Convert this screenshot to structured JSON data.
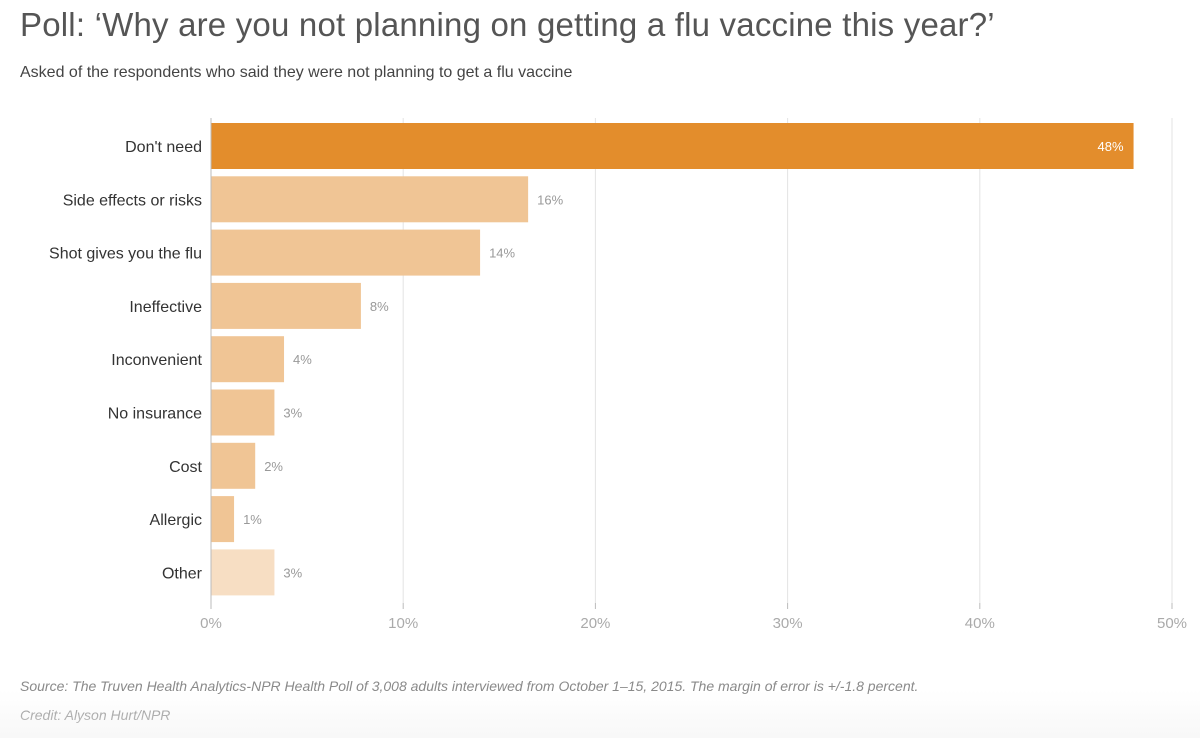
{
  "header": {
    "title": "Poll: ‘Why are you not planning on getting a flu vaccine this year?’",
    "subtitle": "Asked of the respondents who said they were not planning to get a flu vaccine"
  },
  "chart_data": {
    "type": "bar",
    "orientation": "horizontal",
    "title": "Poll: ‘Why are you not planning on getting a flu vaccine this year?’",
    "subtitle": "Asked of the respondents who said they were not planning to get a flu vaccine",
    "categories": [
      "Don't need",
      "Side effects or risks",
      "Shot gives you the flu",
      "Ineffective",
      "Inconvenient",
      "No insurance",
      "Cost",
      "Allergic",
      "Other"
    ],
    "values": [
      48,
      16.5,
      14,
      7.8,
      3.8,
      3.3,
      2.3,
      1.2,
      3.3
    ],
    "value_labels": [
      "48%",
      "16%",
      "14%",
      "8%",
      "4%",
      "3%",
      "2%",
      "1%",
      "3%"
    ],
    "xlim": [
      0,
      50
    ],
    "x_ticks": [
      0,
      10,
      20,
      30,
      40,
      50
    ],
    "x_tick_labels": [
      "0%",
      "10%",
      "20%",
      "30%",
      "40%",
      "50%"
    ],
    "grid": true,
    "xlabel": "",
    "ylabel": "",
    "colors": {
      "highlight": "#E38D2C",
      "default": "#F0C595",
      "other": "#F7DEC3",
      "grid": "#E3E3E3",
      "axis": "#BBBBBB",
      "category_text": "#333333",
      "value_text": "#999999",
      "highlight_value_text": "#FFFFFF",
      "tick_text": "#AAAAAA"
    }
  },
  "footer": {
    "source": "Source: The Truven Health Analytics-NPR Health Poll of 3,008 adults interviewed from October 1–15, 2015. The margin of error is +/-1.8 percent.",
    "credit": "Credit: Alyson Hurt/NPR"
  }
}
